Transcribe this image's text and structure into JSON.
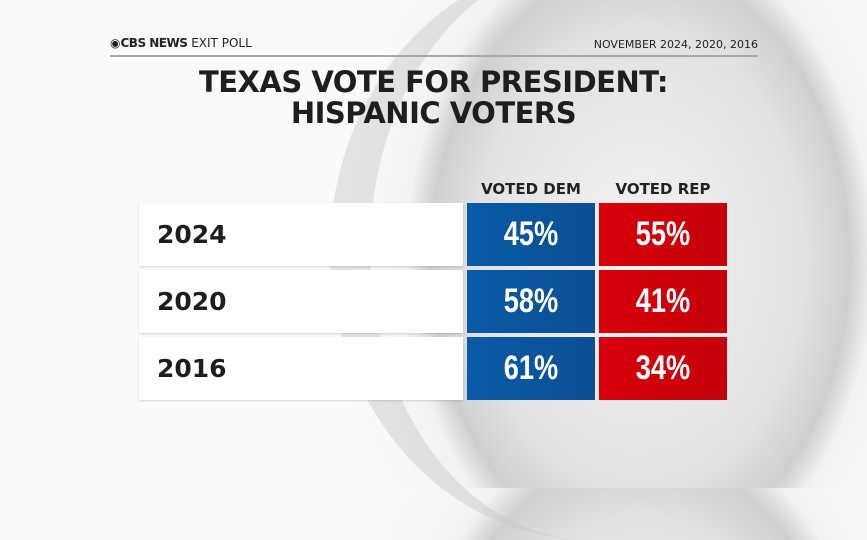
{
  "header": {
    "brand": "CBS NEWS",
    "brand_suffix": "EXIT POLL",
    "date": "NOVEMBER 2024, 2020, 2016"
  },
  "title": {
    "line1": "TEXAS VOTE FOR PRESIDENT:",
    "line2": "HISPANIC VOTERS"
  },
  "colors": {
    "dem": "#0b57a0",
    "rep": "#d0000b"
  },
  "chart_data": {
    "type": "table",
    "title": "TEXAS VOTE FOR PRESIDENT: HISPANIC VOTERS",
    "columns": [
      "VOTED DEM",
      "VOTED REP"
    ],
    "rows": [
      {
        "year": "2024",
        "dem": "45%",
        "rep": "55%"
      },
      {
        "year": "2020",
        "dem": "58%",
        "rep": "41%"
      },
      {
        "year": "2016",
        "dem": "61%",
        "rep": "34%"
      }
    ]
  }
}
